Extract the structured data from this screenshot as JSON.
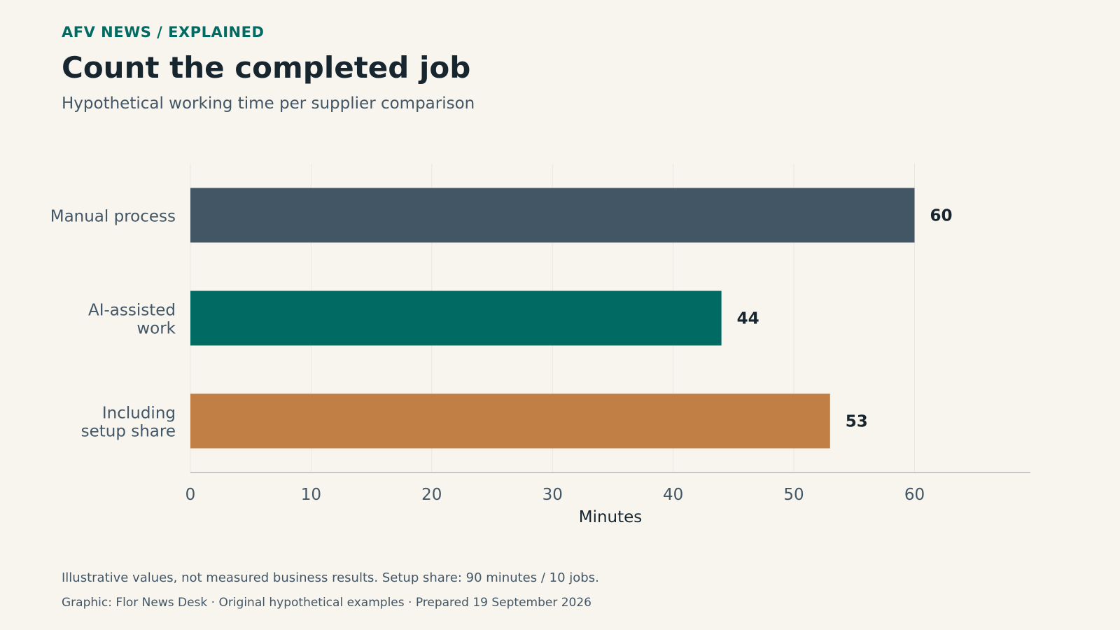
{
  "header": {
    "kicker": "AFV NEWS  /  EXPLAINED",
    "title": "Count the completed job",
    "subtitle": "Hypothetical working time per supplier comparison"
  },
  "footer": {
    "note": "Illustrative values, not measured business results. Setup share: 90 minutes / 10 jobs.",
    "source": "Graphic: Flor News Desk · Original hypothetical examples · Prepared 19 September 2026"
  },
  "colors": {
    "manual": "#435666",
    "ai": "#006a63",
    "setup": "#c17f45",
    "text_dark": "#17252f",
    "text_muted": "#425666",
    "grid": "#e9e6e0",
    "axis": "#b8b8b8"
  },
  "chart_data": {
    "type": "bar",
    "orientation": "horizontal",
    "categories": [
      [
        "Manual process"
      ],
      [
        "AI-assisted",
        "work"
      ],
      [
        "Including",
        "setup share"
      ]
    ],
    "values": [
      60,
      44,
      53
    ],
    "value_labels": [
      "60",
      "44",
      "53"
    ],
    "bar_colors": [
      "#435666",
      "#006a63",
      "#c17f45"
    ],
    "xlabel": "Minutes",
    "xlim": [
      0,
      69.6
    ],
    "xticks": [
      0,
      10,
      20,
      30,
      40,
      50,
      60
    ],
    "grid": "vertical"
  }
}
